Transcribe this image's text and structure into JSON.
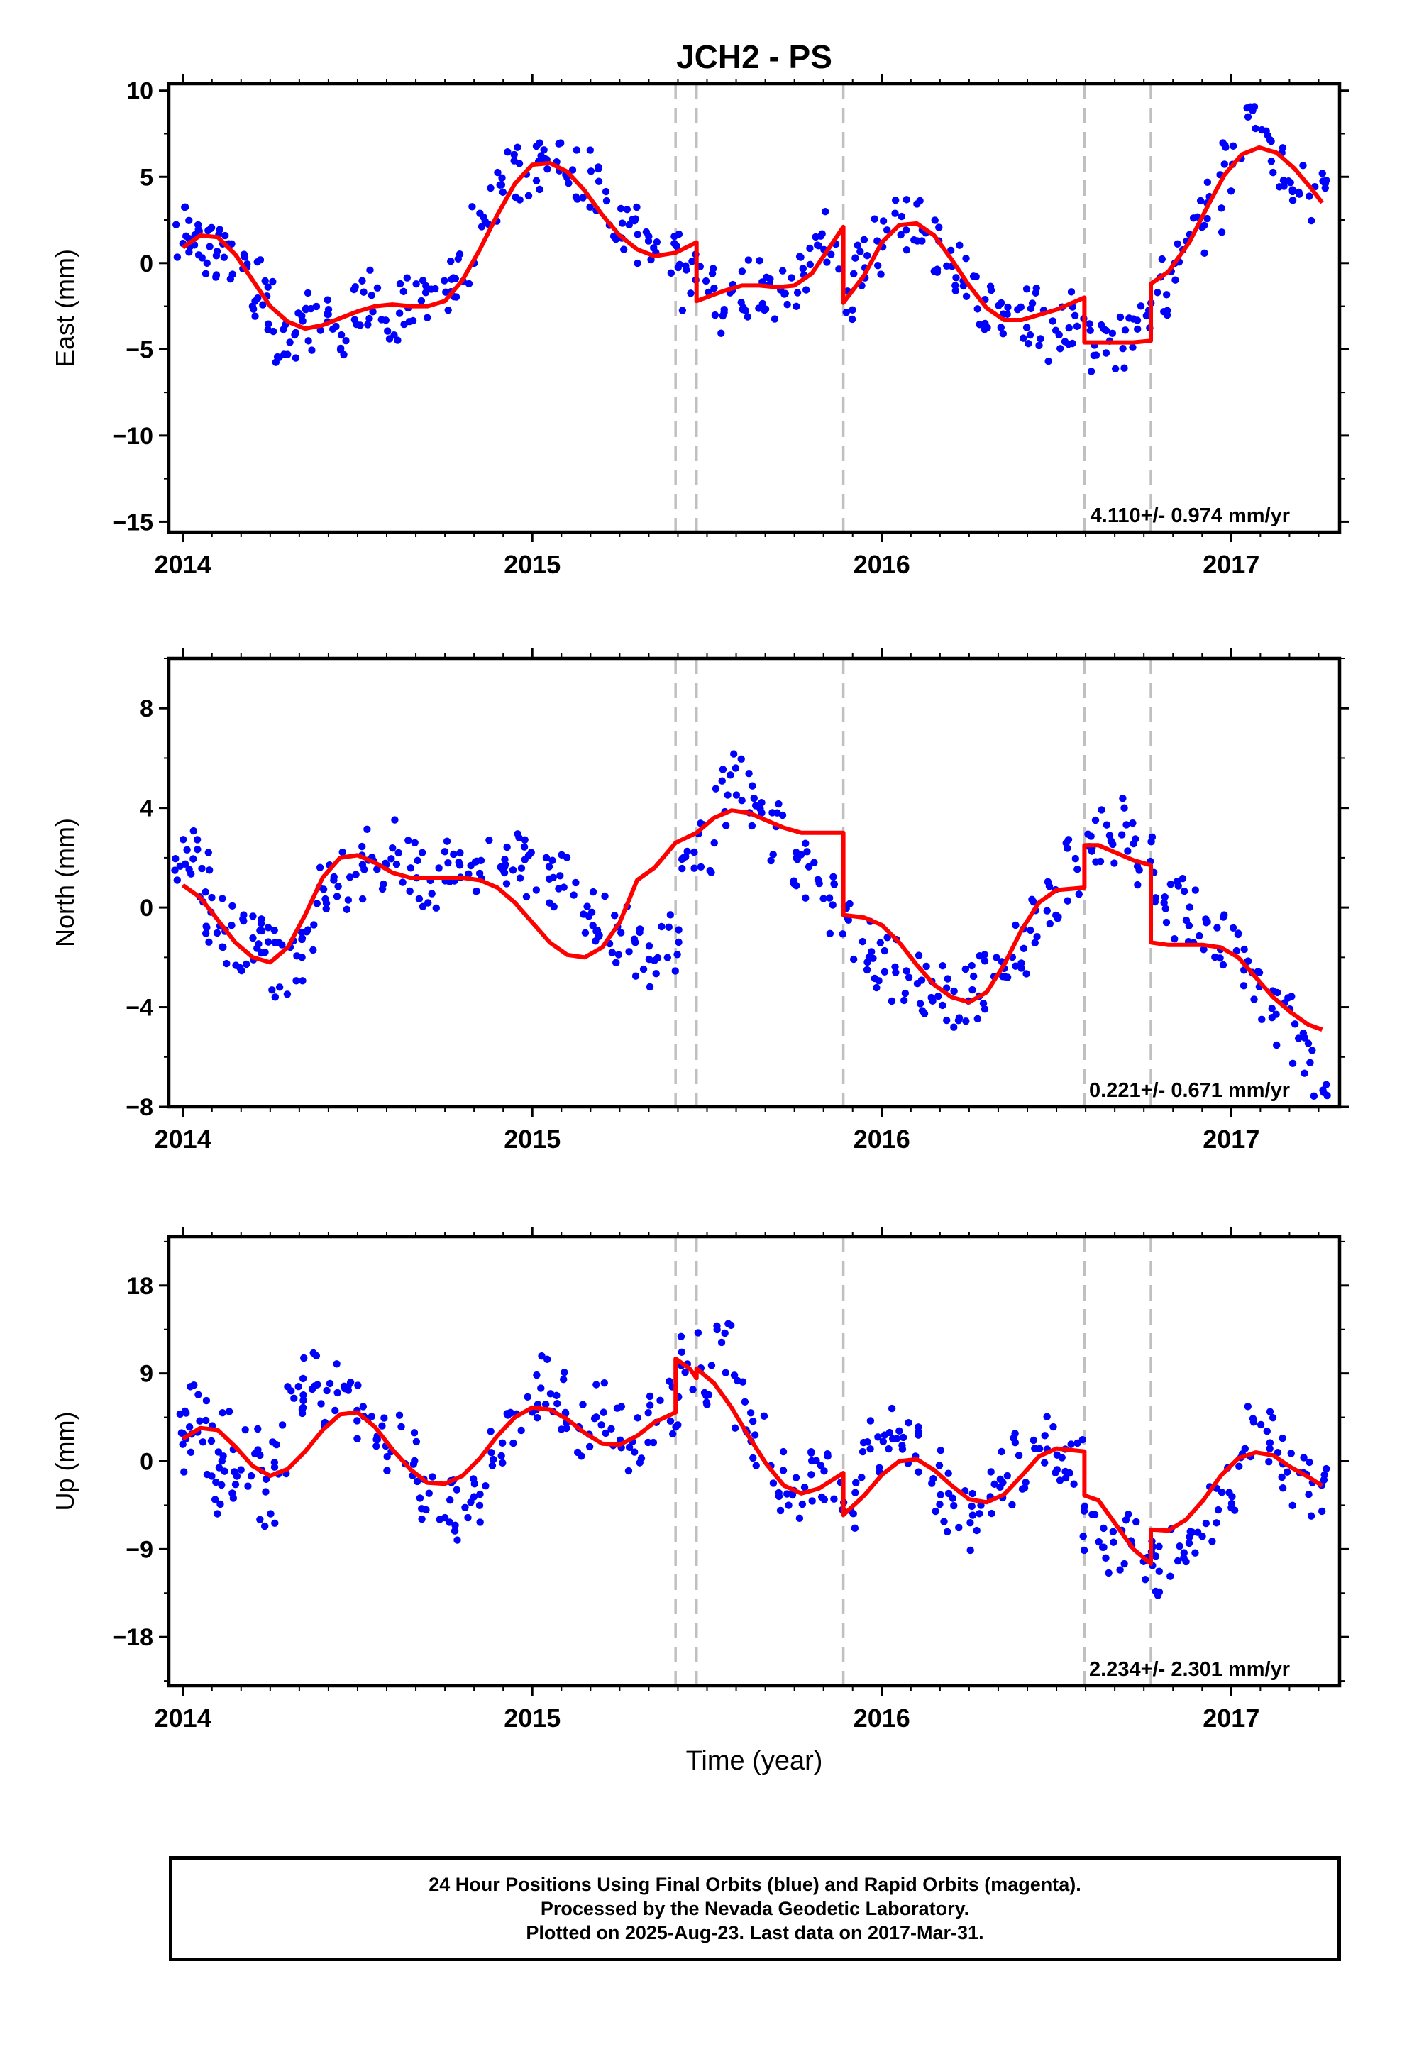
{
  "chart_data": [
    {
      "type": "scatter",
      "title": "JCH2 - PS",
      "xlabel": "",
      "ylabel": "East (mm)",
      "xlim": [
        2013.96,
        2017.31
      ],
      "ylim": [
        -15.6,
        10.4
      ],
      "y_ticks": [
        -15,
        -10,
        -5,
        0,
        5,
        10
      ],
      "x_ticks": [
        2014,
        2015,
        2016,
        2017
      ],
      "grid": false,
      "rate_annotation": "4.110+/- 0.974 mm/yr",
      "offset_lines_x": [
        2015.41,
        2015.47,
        2015.89,
        2016.58,
        2016.77
      ],
      "points_color": "#0000ff",
      "model_color": "#ff0000",
      "series": [
        {
          "name": "daily positions",
          "kind": "points",
          "x": [
            2014.0,
            2014.03,
            2014.06,
            2014.09,
            2014.12,
            2014.16,
            2014.2,
            2014.24,
            2014.28,
            2014.32,
            2014.36,
            2014.4,
            2014.45,
            2014.5,
            2014.55,
            2014.6,
            2014.65,
            2014.7,
            2014.75,
            2014.8,
            2014.85,
            2014.9,
            2014.95,
            2015.0,
            2015.05,
            2015.1,
            2015.15,
            2015.2,
            2015.25,
            2015.3,
            2015.35,
            2015.4,
            2015.45,
            2015.5,
            2015.55,
            2015.6,
            2015.65,
            2015.7,
            2015.75,
            2015.8,
            2015.85,
            2015.9,
            2015.95,
            2016.0,
            2016.05,
            2016.1,
            2016.15,
            2016.2,
            2016.25,
            2016.3,
            2016.35,
            2016.4,
            2016.45,
            2016.5,
            2016.55,
            2016.6,
            2016.65,
            2016.7,
            2016.75,
            2016.8,
            2016.85,
            2016.9,
            2016.95,
            2017.0,
            2017.05,
            2017.1,
            2017.15,
            2017.2,
            2017.25
          ],
          "y": [
            1.5,
            2.0,
            1.8,
            0.5,
            1.0,
            -0.5,
            -1.5,
            -2.5,
            -4.0,
            -4.5,
            -3.5,
            -3.0,
            -3.5,
            -2.5,
            -2.0,
            -3.0,
            -2.0,
            -2.5,
            -1.5,
            -0.5,
            1.5,
            3.5,
            5.0,
            5.5,
            6.5,
            6.0,
            5.0,
            4.0,
            2.5,
            1.5,
            0.5,
            1.0,
            -1.0,
            -2.0,
            -3.0,
            -1.5,
            -1.0,
            -2.0,
            -1.0,
            0.0,
            1.5,
            -1.5,
            0.5,
            1.0,
            2.0,
            2.5,
            1.0,
            -0.5,
            -1.5,
            -2.5,
            -3.5,
            -3.0,
            -3.0,
            -4.0,
            -3.0,
            -4.5,
            -5.0,
            -4.5,
            -4.0,
            -1.5,
            0.5,
            2.0,
            3.5,
            5.5,
            7.5,
            7.0,
            6.0,
            5.0,
            4.0
          ]
        },
        {
          "name": "model",
          "kind": "line",
          "x": [
            2014.0,
            2014.05,
            2014.1,
            2014.15,
            2014.2,
            2014.25,
            2014.3,
            2014.35,
            2014.4,
            2014.45,
            2014.5,
            2014.55,
            2014.6,
            2014.65,
            2014.7,
            2014.75,
            2014.8,
            2014.85,
            2014.9,
            2014.95,
            2015.0,
            2015.05,
            2015.1,
            2015.15,
            2015.2,
            2015.25,
            2015.3,
            2015.35,
            2015.41,
            2015.41,
            2015.47,
            2015.47,
            2015.55,
            2015.6,
            2015.65,
            2015.7,
            2015.75,
            2015.8,
            2015.89,
            2015.89,
            2015.95,
            2016.0,
            2016.05,
            2016.1,
            2016.15,
            2016.2,
            2016.25,
            2016.3,
            2016.35,
            2016.4,
            2016.45,
            2016.5,
            2016.58,
            2016.58,
            2016.62,
            2016.68,
            2016.72,
            2016.77,
            2016.77,
            2016.82,
            2016.88,
            2016.93,
            2016.98,
            2017.03,
            2017.08,
            2017.13,
            2017.18,
            2017.23,
            2017.26
          ],
          "y": [
            0.9,
            1.6,
            1.5,
            0.5,
            -1.0,
            -2.5,
            -3.4,
            -3.8,
            -3.6,
            -3.2,
            -2.8,
            -2.5,
            -2.4,
            -2.5,
            -2.5,
            -2.2,
            -1.0,
            0.8,
            2.8,
            4.6,
            5.7,
            5.8,
            5.3,
            4.2,
            2.8,
            1.6,
            0.8,
            0.4,
            0.6,
            0.6,
            1.2,
            -2.2,
            -1.6,
            -1.3,
            -1.3,
            -1.4,
            -1.3,
            -0.6,
            2.1,
            -2.3,
            -0.7,
            1.2,
            2.2,
            2.3,
            1.6,
            0.2,
            -1.3,
            -2.6,
            -3.3,
            -3.3,
            -3.0,
            -2.7,
            -2.0,
            -4.6,
            -4.6,
            -4.6,
            -4.6,
            -4.5,
            -1.2,
            -0.5,
            1.2,
            3.2,
            5.1,
            6.3,
            6.7,
            6.4,
            5.5,
            4.3,
            3.5
          ]
        }
      ]
    },
    {
      "type": "scatter",
      "title": "",
      "xlabel": "",
      "ylabel": "North (mm)",
      "xlim": [
        2013.96,
        2017.31
      ],
      "ylim": [
        -8.0,
        10.0
      ],
      "y_ticks": [
        -8,
        -4,
        0,
        4,
        8
      ],
      "x_ticks": [
        2014,
        2015,
        2016,
        2017
      ],
      "grid": false,
      "rate_annotation": "0.221+/- 0.671 mm/yr",
      "offset_lines_x": [
        2015.41,
        2015.47,
        2015.89,
        2016.58,
        2016.77
      ],
      "points_color": "#0000ff",
      "model_color": "#ff0000",
      "series": [
        {
          "name": "daily positions",
          "kind": "points",
          "x": [
            2014.0,
            2014.03,
            2014.06,
            2014.09,
            2014.12,
            2014.16,
            2014.2,
            2014.24,
            2014.28,
            2014.32,
            2014.36,
            2014.4,
            2014.45,
            2014.5,
            2014.55,
            2014.6,
            2014.65,
            2014.7,
            2014.75,
            2014.8,
            2014.85,
            2014.9,
            2014.95,
            2015.0,
            2015.05,
            2015.1,
            2015.15,
            2015.2,
            2015.25,
            2015.3,
            2015.35,
            2015.4,
            2015.45,
            2015.5,
            2015.55,
            2015.6,
            2015.65,
            2015.7,
            2015.75,
            2015.8,
            2015.85,
            2015.9,
            2015.95,
            2016.0,
            2016.05,
            2016.1,
            2016.15,
            2016.2,
            2016.25,
            2016.3,
            2016.35,
            2016.4,
            2016.45,
            2016.5,
            2016.55,
            2016.6,
            2016.65,
            2016.7,
            2016.75,
            2016.8,
            2016.85,
            2016.9,
            2016.95,
            2017.0,
            2017.05,
            2017.1,
            2017.15,
            2017.2,
            2017.25
          ],
          "y": [
            1.5,
            2.5,
            1.0,
            -0.5,
            -1.0,
            -1.5,
            -1.0,
            -1.5,
            -2.5,
            -2.0,
            -1.0,
            0.5,
            1.0,
            1.5,
            2.0,
            2.5,
            1.5,
            1.0,
            2.0,
            1.0,
            1.5,
            2.0,
            2.0,
            1.5,
            1.0,
            1.0,
            0.0,
            -0.5,
            -1.0,
            -1.5,
            -2.0,
            -1.5,
            1.5,
            2.5,
            4.5,
            5.0,
            4.0,
            3.0,
            2.0,
            1.5,
            0.0,
            -1.0,
            -1.5,
            -2.0,
            -2.5,
            -3.0,
            -3.5,
            -4.0,
            -3.5,
            -3.0,
            -2.5,
            -1.5,
            -0.5,
            0.5,
            1.5,
            2.5,
            3.0,
            3.5,
            2.0,
            0.5,
            0.0,
            -0.5,
            -1.0,
            -1.5,
            -2.5,
            -3.5,
            -4.5,
            -5.5,
            -6.5
          ]
        },
        {
          "name": "model",
          "kind": "line",
          "x": [
            2014.0,
            2014.05,
            2014.1,
            2014.15,
            2014.2,
            2014.25,
            2014.3,
            2014.35,
            2014.4,
            2014.45,
            2014.5,
            2014.55,
            2014.6,
            2014.65,
            2014.7,
            2014.75,
            2014.8,
            2014.85,
            2014.9,
            2014.95,
            2015.0,
            2015.05,
            2015.1,
            2015.15,
            2015.2,
            2015.25,
            2015.3,
            2015.35,
            2015.41,
            2015.41,
            2015.47,
            2015.47,
            2015.52,
            2015.57,
            2015.62,
            2015.67,
            2015.72,
            2015.77,
            2015.82,
            2015.89,
            2015.89,
            2015.95,
            2016.0,
            2016.05,
            2016.1,
            2016.15,
            2016.2,
            2016.25,
            2016.3,
            2016.35,
            2016.4,
            2016.45,
            2016.5,
            2016.58,
            2016.58,
            2016.62,
            2016.67,
            2016.72,
            2016.77,
            2016.77,
            2016.82,
            2016.87,
            2016.92,
            2016.97,
            2017.02,
            2017.07,
            2017.12,
            2017.17,
            2017.22,
            2017.26
          ],
          "y": [
            0.9,
            0.4,
            -0.5,
            -1.4,
            -2.0,
            -2.2,
            -1.6,
            -0.3,
            1.2,
            2.0,
            2.1,
            1.8,
            1.4,
            1.2,
            1.2,
            1.2,
            1.2,
            1.1,
            0.8,
            0.2,
            -0.6,
            -1.4,
            -1.9,
            -2.0,
            -1.6,
            -0.6,
            1.1,
            1.6,
            2.6,
            2.6,
            3.0,
            3.0,
            3.6,
            3.9,
            3.8,
            3.5,
            3.2,
            3.0,
            3.0,
            3.0,
            -0.3,
            -0.4,
            -0.7,
            -1.4,
            -2.3,
            -3.1,
            -3.6,
            -3.8,
            -3.4,
            -2.3,
            -0.9,
            0.2,
            0.7,
            0.8,
            2.5,
            2.5,
            2.2,
            1.9,
            1.7,
            -1.4,
            -1.5,
            -1.5,
            -1.5,
            -1.6,
            -2.0,
            -2.8,
            -3.6,
            -4.2,
            -4.7,
            -4.9
          ]
        }
      ]
    },
    {
      "type": "scatter",
      "title": "",
      "xlabel": "Time (year)",
      "ylabel": "Up (mm)",
      "xlim": [
        2013.96,
        2017.31
      ],
      "ylim": [
        -23.0,
        23.0
      ],
      "y_ticks": [
        -18,
        -9,
        0,
        9,
        18
      ],
      "x_ticks": [
        2014,
        2015,
        2016,
        2017
      ],
      "grid": false,
      "rate_annotation": "2.234+/- 2.301 mm/yr",
      "offset_lines_x": [
        2015.41,
        2015.47,
        2015.89,
        2016.58,
        2016.77
      ],
      "points_color": "#0000ff",
      "model_color": "#ff0000",
      "series": [
        {
          "name": "daily positions",
          "kind": "points",
          "x": [
            2014.0,
            2014.03,
            2014.06,
            2014.09,
            2014.12,
            2014.16,
            2014.2,
            2014.24,
            2014.28,
            2014.32,
            2014.36,
            2014.4,
            2014.45,
            2014.5,
            2014.55,
            2014.6,
            2014.65,
            2014.7,
            2014.75,
            2014.8,
            2014.85,
            2014.9,
            2014.95,
            2015.0,
            2015.05,
            2015.1,
            2015.15,
            2015.2,
            2015.25,
            2015.3,
            2015.35,
            2015.4,
            2015.45,
            2015.5,
            2015.55,
            2015.6,
            2015.65,
            2015.7,
            2015.75,
            2015.8,
            2015.85,
            2015.9,
            2015.95,
            2016.0,
            2016.05,
            2016.1,
            2016.15,
            2016.2,
            2016.25,
            2016.3,
            2016.35,
            2016.4,
            2016.45,
            2016.5,
            2016.55,
            2016.6,
            2016.65,
            2016.7,
            2016.75,
            2016.8,
            2016.85,
            2016.9,
            2016.95,
            2017.0,
            2017.05,
            2017.1,
            2017.15,
            2017.2,
            2017.25
          ],
          "y": [
            2.0,
            5.0,
            3.0,
            -3.0,
            2.0,
            -1.0,
            0.5,
            -4.0,
            1.5,
            5.0,
            8.0,
            6.0,
            7.0,
            5.0,
            4.0,
            2.0,
            0.0,
            -3.0,
            -5.0,
            -6.0,
            -4.0,
            0.0,
            4.0,
            6.0,
            8.0,
            6.0,
            3.0,
            5.0,
            4.0,
            2.0,
            4.0,
            6.0,
            10.0,
            8.0,
            12.0,
            6.0,
            2.0,
            -2.0,
            -4.0,
            -2.0,
            -1.0,
            -4.0,
            1.0,
            0.0,
            3.0,
            2.0,
            -2.0,
            -4.0,
            -6.0,
            -4.0,
            -2.0,
            0.0,
            2.0,
            1.0,
            0.0,
            -6.0,
            -10.0,
            -8.0,
            -9.0,
            -11.0,
            -9.0,
            -7.0,
            -5.0,
            -2.0,
            3.0,
            2.0,
            0.0,
            -2.0,
            -3.0
          ]
        },
        {
          "name": "model",
          "kind": "line",
          "x": [
            2014.0,
            2014.05,
            2014.1,
            2014.15,
            2014.2,
            2014.25,
            2014.3,
            2014.35,
            2014.4,
            2014.45,
            2014.5,
            2014.55,
            2014.6,
            2014.65,
            2014.7,
            2014.75,
            2014.8,
            2014.85,
            2014.9,
            2014.95,
            2015.0,
            2015.05,
            2015.1,
            2015.15,
            2015.2,
            2015.25,
            2015.3,
            2015.35,
            2015.41,
            2015.41,
            2015.45,
            2015.47,
            2015.47,
            2015.52,
            2015.57,
            2015.62,
            2015.67,
            2015.72,
            2015.77,
            2015.82,
            2015.89,
            2015.89,
            2015.95,
            2016.0,
            2016.05,
            2016.1,
            2016.15,
            2016.2,
            2016.25,
            2016.3,
            2016.35,
            2016.4,
            2016.45,
            2016.5,
            2016.58,
            2016.58,
            2016.62,
            2016.67,
            2016.72,
            2016.77,
            2016.77,
            2016.82,
            2016.87,
            2016.92,
            2016.97,
            2017.02,
            2017.07,
            2017.12,
            2017.17,
            2017.22,
            2017.26
          ],
          "y": [
            2.3,
            3.4,
            3.2,
            1.5,
            -0.5,
            -1.5,
            -0.8,
            1.0,
            3.2,
            4.8,
            5.0,
            3.5,
            1.2,
            -0.8,
            -2.2,
            -2.3,
            -1.5,
            0.3,
            2.6,
            4.5,
            5.5,
            5.3,
            4.3,
            2.9,
            1.8,
            1.7,
            2.6,
            4.0,
            5.0,
            10.5,
            9.5,
            8.5,
            9.5,
            8.0,
            5.5,
            2.5,
            -0.3,
            -2.5,
            -3.3,
            -2.8,
            -1.2,
            -5.5,
            -3.5,
            -1.4,
            0.0,
            0.2,
            -0.9,
            -2.5,
            -3.9,
            -4.2,
            -3.4,
            -1.5,
            0.5,
            1.3,
            1.0,
            -3.5,
            -4.0,
            -6.5,
            -9.0,
            -10.5,
            -7.0,
            -7.1,
            -6.0,
            -4.0,
            -1.5,
            0.3,
            0.9,
            0.6,
            -0.6,
            -1.6,
            -2.5
          ]
        }
      ]
    }
  ],
  "footer": {
    "line1": "24 Hour Positions Using Final Orbits (blue) and Rapid Orbits (magenta).",
    "line2": "Processed by the Nevada Geodetic Laboratory.",
    "line3": "Plotted on 2025-Aug-23. Last data on 2017-Mar-31."
  }
}
